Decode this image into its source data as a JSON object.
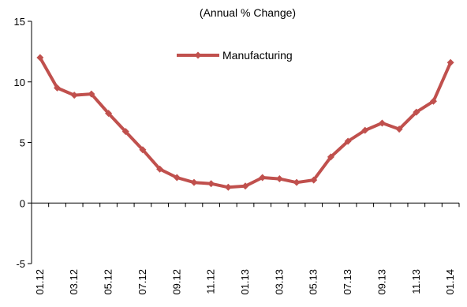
{
  "chart_data": {
    "type": "line",
    "title": "(Annual % Change)",
    "xlabel": "",
    "ylabel": "",
    "ylim": [
      -5,
      15
    ],
    "yticks": [
      -5,
      0,
      5,
      10,
      15
    ],
    "x": [
      "01.12",
      "02.12",
      "03.12",
      "04.12",
      "05.12",
      "06.12",
      "07.12",
      "08.12",
      "09.12",
      "10.12",
      "11.12",
      "12.12",
      "01.13",
      "02.13",
      "03.13",
      "04.13",
      "05.13",
      "06.13",
      "07.13",
      "08.13",
      "09.13",
      "10.13",
      "11.13",
      "12.13",
      "01.14"
    ],
    "xtick_labels": [
      "01.12",
      "03.12",
      "05.12",
      "07.12",
      "09.12",
      "11.12",
      "01.13",
      "03.13",
      "05.13",
      "07.13",
      "09.13",
      "11.13",
      "01.14"
    ],
    "series": [
      {
        "name": "Manufacturing",
        "color": "#c0504d",
        "marker": "diamond",
        "values": [
          12.0,
          9.5,
          8.9,
          9.0,
          7.4,
          5.9,
          4.4,
          2.8,
          2.1,
          1.7,
          1.6,
          1.3,
          1.4,
          2.1,
          2.0,
          1.7,
          1.9,
          3.8,
          5.1,
          6.0,
          6.6,
          6.1,
          7.5,
          8.4,
          11.6
        ]
      }
    ],
    "grid": false,
    "legend_position": "top-center"
  }
}
